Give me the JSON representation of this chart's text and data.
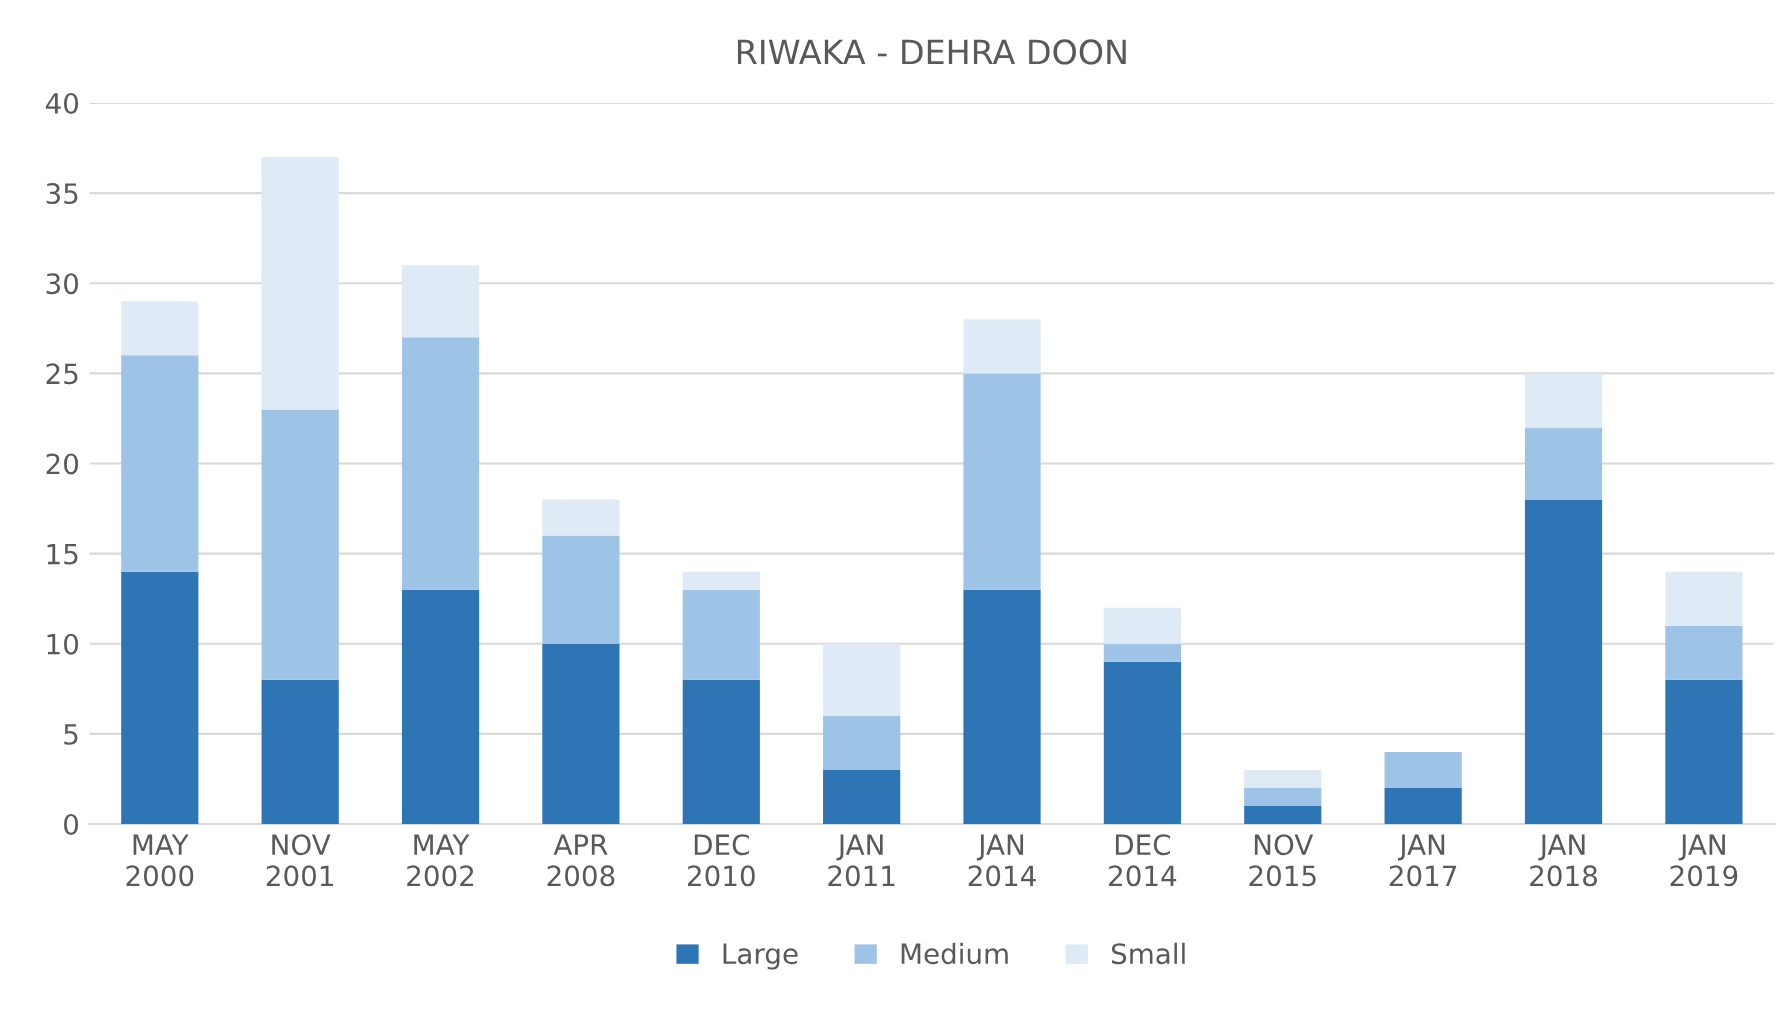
{
  "chart_data": {
    "type": "bar",
    "title": "RIWAKA - DEHRA DOON",
    "categories": [
      "MAY\n2000",
      "NOV\n2001",
      "MAY\n2002",
      "APR\n2008",
      "DEC\n2010",
      "JAN\n2011",
      "JAN\n2014",
      "DEC\n2014",
      "NOV\n2015",
      "JAN\n2017",
      "JAN\n2018",
      "JAN\n2019"
    ],
    "stacked": true,
    "series": [
      {
        "name": "Large",
        "color": "#2e75b6",
        "values": [
          14,
          8,
          13,
          10,
          8,
          3,
          13,
          9,
          1,
          2,
          18,
          8
        ]
      },
      {
        "name": "Medium",
        "color": "#9dc3e6",
        "values": [
          12,
          15,
          14,
          6,
          5,
          3,
          12,
          1,
          1,
          2,
          4,
          3
        ]
      },
      {
        "name": "Small",
        "color": "#deebf7",
        "values": [
          3,
          14,
          4,
          2,
          1,
          4,
          3,
          2,
          1,
          0,
          3,
          3
        ]
      }
    ],
    "ylim": [
      0,
      40
    ],
    "yticks": [
      0,
      5,
      10,
      15,
      20,
      25,
      30,
      35,
      40
    ],
    "grid": "y",
    "legend": "bottom"
  }
}
